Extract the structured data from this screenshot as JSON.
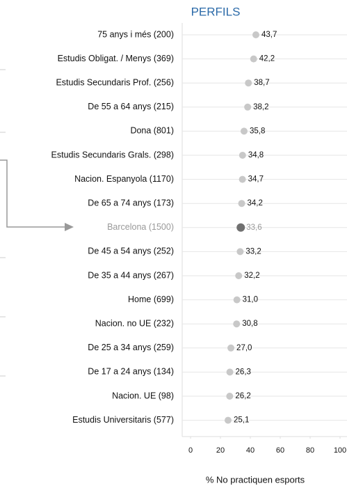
{
  "chart_data": {
    "type": "dot",
    "title": "PERFILS",
    "xlabel": "% No practiquen esports",
    "categories": [
      "75 anys i més (200)",
      "Estudis Obligat. / Menys (369)",
      "Estudis Secundaris Prof. (256)",
      "De 55 a 64 anys (215)",
      "Dona (801)",
      "Estudis Secundaris Grals. (298)",
      "Nacion. Espanyola (1170)",
      "De 65 a 74 anys (173)",
      "Barcelona (1500)",
      "De 45 a 54 anys (252)",
      "De 35 a 44 anys (267)",
      "Home (699)",
      "Nacion. no UE (232)",
      "De 25 a 34 anys (259)",
      "De 17 a 24 anys (134)",
      "Nacion. UE (98)",
      "Estudis Universitaris (577)"
    ],
    "values": [
      43.7,
      42.2,
      38.7,
      38.2,
      35.8,
      34.8,
      34.7,
      34.2,
      33.6,
      33.2,
      32.2,
      31.0,
      30.8,
      27.0,
      26.3,
      26.2,
      25.1
    ],
    "value_labels": [
      "43,7",
      "42,2",
      "38,7",
      "38,2",
      "35,8",
      "34,8",
      "34,7",
      "34,2",
      "33,6",
      "33,2",
      "32,2",
      "31,0",
      "30,8",
      "27,0",
      "26,3",
      "26,2",
      "25,1"
    ],
    "colors": [
      "#c8c8c8",
      "#c8c8c8",
      "#c8c8c8",
      "#c8c8c8",
      "#c8c8c8",
      "#c8c8c8",
      "#c8c8c8",
      "#c8c8c8",
      "#707070",
      "#c8c8c8",
      "#c8c8c8",
      "#c8c8c8",
      "#c8c8c8",
      "#c8c8c8",
      "#c8c8c8",
      "#c8c8c8",
      "#c8c8c8"
    ],
    "xlim": [
      0,
      100
    ],
    "xticks": [
      0,
      20,
      40,
      60,
      80,
      100
    ],
    "grid": true
  }
}
